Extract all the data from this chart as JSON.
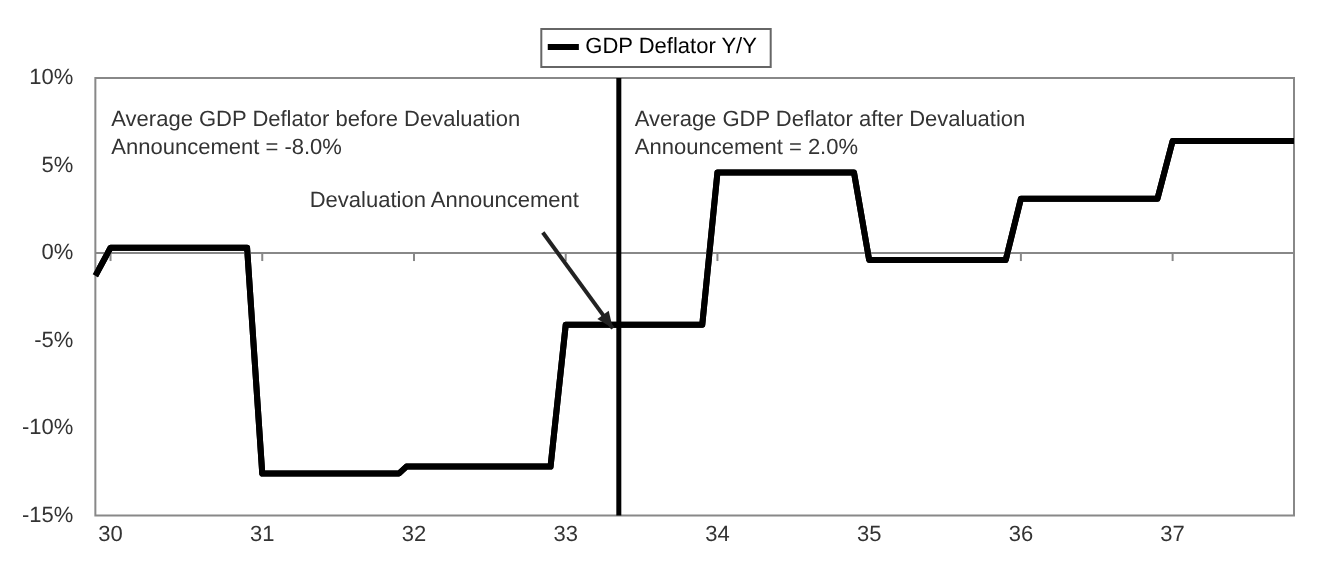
{
  "chart_data": {
    "type": "line",
    "legend": "top",
    "xlim": [
      29.9,
      37.8
    ],
    "xticks": [
      30,
      31,
      32,
      33,
      34,
      35,
      36,
      37
    ],
    "ylim": [
      -15,
      10
    ],
    "yticks": [
      {
        "value": -15,
        "label": "-15%"
      },
      {
        "value": -10,
        "label": "-10%"
      },
      {
        "value": -5,
        "label": "-5%"
      },
      {
        "value": 0,
        "label": "0%"
      },
      {
        "value": 5,
        "label": "5%"
      },
      {
        "value": 10,
        "label": "10%"
      }
    ],
    "x": [
      29.9,
      30.0,
      30.9,
      31.0,
      31.9,
      31.95,
      32.9,
      33.0,
      33.9,
      34.0,
      34.9,
      35.0,
      35.9,
      36.0,
      36.9,
      37.0,
      37.8
    ],
    "series": [
      {
        "name": "GDP Deflator Y/Y",
        "color": "#000000",
        "values": [
          -1.3,
          0.3,
          0.3,
          -12.6,
          -12.6,
          -12.2,
          -12.2,
          -4.1,
          -4.1,
          4.6,
          4.6,
          -0.4,
          -0.4,
          3.1,
          3.1,
          6.4,
          6.4
        ]
      }
    ],
    "ref_lines": [
      {
        "axis": "x",
        "value": 33.35,
        "label": "Devaluation Announcement",
        "color": "#000000"
      }
    ],
    "annotations": [
      "Average GDP Deflator before Devaluation Announcement = -8.0%",
      "Average GDP Deflator after Devaluation Announcement = 2.0%"
    ]
  }
}
